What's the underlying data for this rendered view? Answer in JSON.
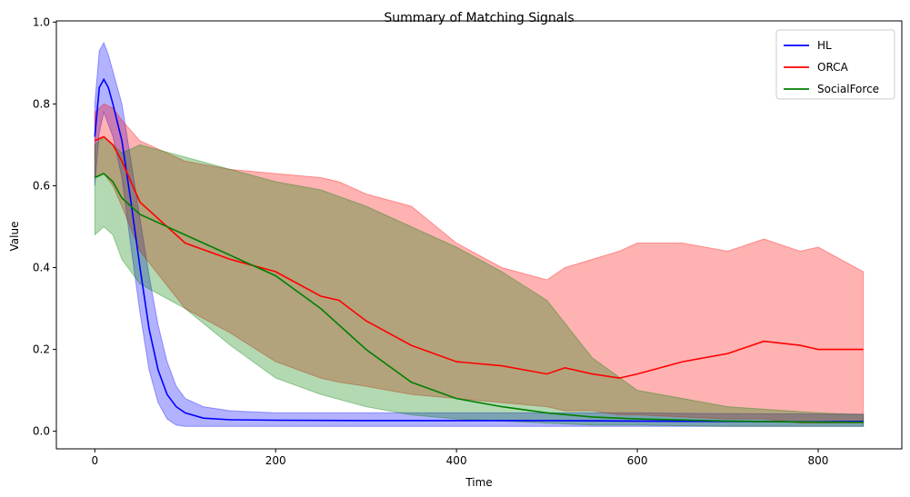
{
  "chart_data": {
    "type": "line",
    "title": "Summary of Matching Signals",
    "xlabel": "Time",
    "ylabel": "Value",
    "xlim": [
      -42.5,
      892.5
    ],
    "ylim": [
      -0.043,
      1.003
    ],
    "xticks": [
      0,
      200,
      400,
      600,
      800
    ],
    "yticks": [
      0.0,
      0.2,
      0.4,
      0.6,
      0.8,
      1.0
    ],
    "xtick_labels": [
      "0",
      "200",
      "400",
      "600",
      "800"
    ],
    "ytick_labels": [
      "0.0",
      "0.2",
      "0.4",
      "0.6",
      "0.8",
      "1.0"
    ],
    "legend": {
      "position": "top-right"
    },
    "series": [
      {
        "name": "HL",
        "color": "#0000ff",
        "band_color": "#0000ff",
        "x": [
          0,
          5,
          10,
          15,
          20,
          30,
          40,
          50,
          60,
          70,
          80,
          90,
          100,
          120,
          150,
          200,
          300,
          400,
          500,
          600,
          700,
          800,
          850
        ],
        "mean": [
          0.72,
          0.84,
          0.86,
          0.84,
          0.8,
          0.71,
          0.56,
          0.4,
          0.25,
          0.15,
          0.09,
          0.06,
          0.045,
          0.032,
          0.028,
          0.027,
          0.026,
          0.026,
          0.026,
          0.025,
          0.024,
          0.023,
          0.024
        ],
        "upper": [
          0.8,
          0.93,
          0.95,
          0.92,
          0.88,
          0.8,
          0.66,
          0.52,
          0.38,
          0.26,
          0.17,
          0.11,
          0.08,
          0.06,
          0.05,
          0.045,
          0.045,
          0.045,
          0.045,
          0.045,
          0.043,
          0.042,
          0.042
        ],
        "lower": [
          0.6,
          0.73,
          0.78,
          0.75,
          0.72,
          0.62,
          0.45,
          0.29,
          0.15,
          0.07,
          0.03,
          0.015,
          0.012,
          0.012,
          0.012,
          0.012,
          0.012,
          0.012,
          0.012,
          0.012,
          0.012,
          0.012,
          0.012
        ]
      },
      {
        "name": "ORCA",
        "color": "#ff0000",
        "band_color": "#ff0000",
        "x": [
          0,
          10,
          20,
          30,
          50,
          100,
          150,
          200,
          250,
          270,
          300,
          350,
          400,
          450,
          500,
          520,
          550,
          580,
          600,
          650,
          700,
          740,
          780,
          800,
          850
        ],
        "mean": [
          0.71,
          0.72,
          0.7,
          0.66,
          0.56,
          0.46,
          0.42,
          0.39,
          0.33,
          0.32,
          0.27,
          0.21,
          0.17,
          0.16,
          0.14,
          0.155,
          0.14,
          0.13,
          0.14,
          0.17,
          0.19,
          0.22,
          0.21,
          0.2,
          0.2
        ],
        "upper": [
          0.78,
          0.8,
          0.79,
          0.76,
          0.71,
          0.66,
          0.64,
          0.63,
          0.62,
          0.61,
          0.58,
          0.55,
          0.46,
          0.4,
          0.37,
          0.4,
          0.42,
          0.44,
          0.46,
          0.46,
          0.44,
          0.47,
          0.44,
          0.45,
          0.39
        ],
        "lower": [
          0.62,
          0.63,
          0.6,
          0.55,
          0.44,
          0.3,
          0.24,
          0.17,
          0.13,
          0.12,
          0.11,
          0.09,
          0.08,
          0.07,
          0.06,
          0.05,
          0.05,
          0.04,
          0.04,
          0.035,
          0.03,
          0.03,
          0.02,
          0.02,
          0.02
        ]
      },
      {
        "name": "SocialForce",
        "color": "#008000",
        "band_color": "#008000",
        "x": [
          0,
          10,
          20,
          30,
          50,
          100,
          150,
          200,
          250,
          300,
          350,
          400,
          450,
          500,
          550,
          600,
          700,
          800,
          850
        ],
        "mean": [
          0.62,
          0.63,
          0.61,
          0.57,
          0.53,
          0.48,
          0.43,
          0.38,
          0.3,
          0.2,
          0.12,
          0.08,
          0.06,
          0.045,
          0.035,
          0.03,
          0.025,
          0.022,
          0.022
        ],
        "upper": [
          0.7,
          0.72,
          0.7,
          0.68,
          0.7,
          0.67,
          0.64,
          0.61,
          0.59,
          0.55,
          0.5,
          0.45,
          0.39,
          0.32,
          0.18,
          0.1,
          0.06,
          0.045,
          0.04
        ],
        "lower": [
          0.48,
          0.5,
          0.48,
          0.42,
          0.36,
          0.3,
          0.21,
          0.13,
          0.09,
          0.06,
          0.04,
          0.03,
          0.025,
          0.02,
          0.015,
          0.015,
          0.012,
          0.012,
          0.012
        ]
      }
    ]
  }
}
